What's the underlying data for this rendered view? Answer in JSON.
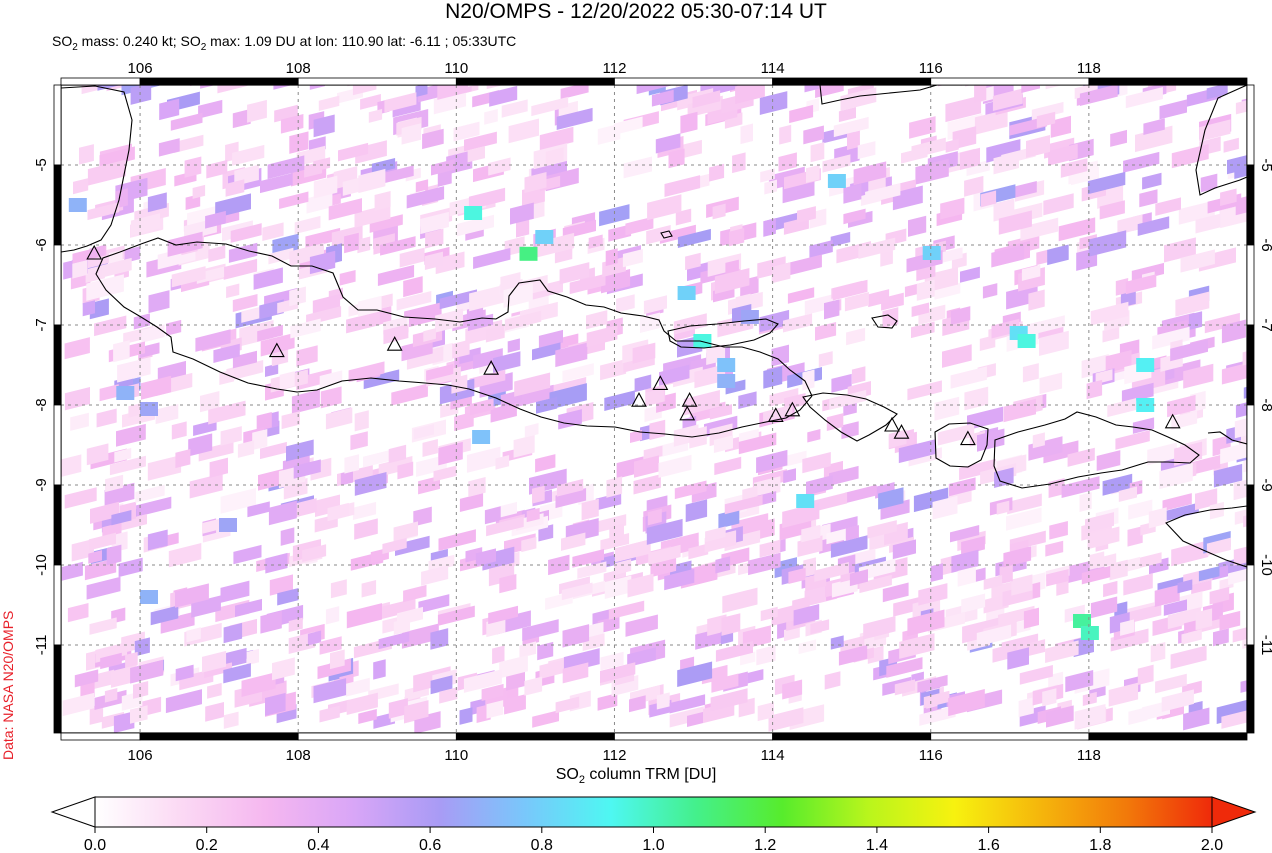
{
  "header": {
    "title": "N20/OMPS - 12/20/2022 05:30-07:14 UT",
    "subtitle_prefix": "SO",
    "subtitle_mass": " mass: 0.240 kt; SO",
    "subtitle_rest": " max: 1.09 DU at lon: 110.90 lat: -6.11 ; 05:33UTC",
    "subscript": "2"
  },
  "credit": "Data: NASA N20/OMPS",
  "map": {
    "lon_range": [
      105,
      120
    ],
    "lat_range": [
      -12.1,
      -4.0
    ],
    "lon_ticks": [
      "106",
      "108",
      "110",
      "112",
      "114",
      "116",
      "118"
    ],
    "lon_tick_values": [
      106,
      108,
      110,
      112,
      114,
      116,
      118
    ],
    "lat_ticks": [
      "-5",
      "-6",
      "-7",
      "-8",
      "-9",
      "-10",
      "-11"
    ],
    "lat_tick_values": [
      -5,
      -6,
      -7,
      -8,
      -9,
      -10,
      -11
    ],
    "grid": true,
    "volcanoes": [
      {
        "lon": 105.42,
        "lat": -6.1
      },
      {
        "lon": 107.73,
        "lat": -7.32
      },
      {
        "lon": 109.22,
        "lat": -7.24
      },
      {
        "lon": 110.44,
        "lat": -7.54
      },
      {
        "lon": 112.31,
        "lat": -7.94
      },
      {
        "lon": 112.58,
        "lat": -7.73
      },
      {
        "lon": 112.92,
        "lat": -8.11
      },
      {
        "lon": 112.95,
        "lat": -7.94
      },
      {
        "lon": 114.04,
        "lat": -8.13
      },
      {
        "lon": 114.25,
        "lat": -8.06
      },
      {
        "lon": 115.51,
        "lat": -8.25
      },
      {
        "lon": 115.63,
        "lat": -8.34
      },
      {
        "lon": 116.47,
        "lat": -8.42
      },
      {
        "lon": 119.06,
        "lat": -8.21
      }
    ],
    "highlight_pixels": [
      {
        "lon": 110.2,
        "lat": -5.6,
        "value": 0.95
      },
      {
        "lon": 110.9,
        "lat": -6.11,
        "value": 1.09
      },
      {
        "lon": 111.1,
        "lat": -5.9,
        "value": 0.8
      },
      {
        "lon": 112.9,
        "lat": -6.6,
        "value": 0.8
      },
      {
        "lon": 113.1,
        "lat": -7.2,
        "value": 0.95
      },
      {
        "lon": 113.4,
        "lat": -7.5,
        "value": 0.75
      },
      {
        "lon": 113.7,
        "lat": -6.9,
        "value": 0.65
      },
      {
        "lon": 114.8,
        "lat": -5.2,
        "value": 0.8
      },
      {
        "lon": 116.0,
        "lat": -6.1,
        "value": 0.8
      },
      {
        "lon": 117.1,
        "lat": -7.1,
        "value": 0.85
      },
      {
        "lon": 117.2,
        "lat": -7.2,
        "value": 0.95
      },
      {
        "lon": 118.7,
        "lat": -7.5,
        "value": 0.9
      },
      {
        "lon": 118.7,
        "lat": -8.0,
        "value": 0.9
      },
      {
        "lon": 117.9,
        "lat": -10.7,
        "value": 1.05
      },
      {
        "lon": 118.0,
        "lat": -10.85,
        "value": 1.0
      },
      {
        "lon": 114.4,
        "lat": -9.2,
        "value": 0.85
      },
      {
        "lon": 110.3,
        "lat": -8.4,
        "value": 0.75
      },
      {
        "lon": 105.2,
        "lat": -5.5,
        "value": 0.7
      },
      {
        "lon": 105.8,
        "lat": -7.85,
        "value": 0.7
      },
      {
        "lon": 106.1,
        "lat": -8.05,
        "value": 0.65
      },
      {
        "lon": 106.1,
        "lat": -10.4,
        "value": 0.7
      },
      {
        "lon": 107.1,
        "lat": -9.5,
        "value": 0.65
      },
      {
        "lon": 113.4,
        "lat": -7.7,
        "value": 0.7
      }
    ]
  },
  "colorbar": {
    "label_prefix": "SO",
    "label_sub": "2",
    "label_suffix": " column TRM [DU]",
    "range": [
      0.0,
      2.0
    ],
    "ticks": [
      "0.0",
      "0.2",
      "0.4",
      "0.6",
      "0.8",
      "1.0",
      "1.2",
      "1.4",
      "1.6",
      "1.8",
      "2.0"
    ],
    "tick_values": [
      0.0,
      0.2,
      0.4,
      0.6,
      0.8,
      1.0,
      1.2,
      1.4,
      1.6,
      1.8,
      2.0
    ],
    "colors": [
      "#ffffff",
      "#fbd9f4",
      "#f5b7f0",
      "#d9a6f7",
      "#a99bf5",
      "#79c7fb",
      "#4ef7f2",
      "#44f08b",
      "#57ec2c",
      "#b9f51c",
      "#f7f20f",
      "#f5b60c",
      "#f27a0a",
      "#ef2a0a"
    ]
  }
}
